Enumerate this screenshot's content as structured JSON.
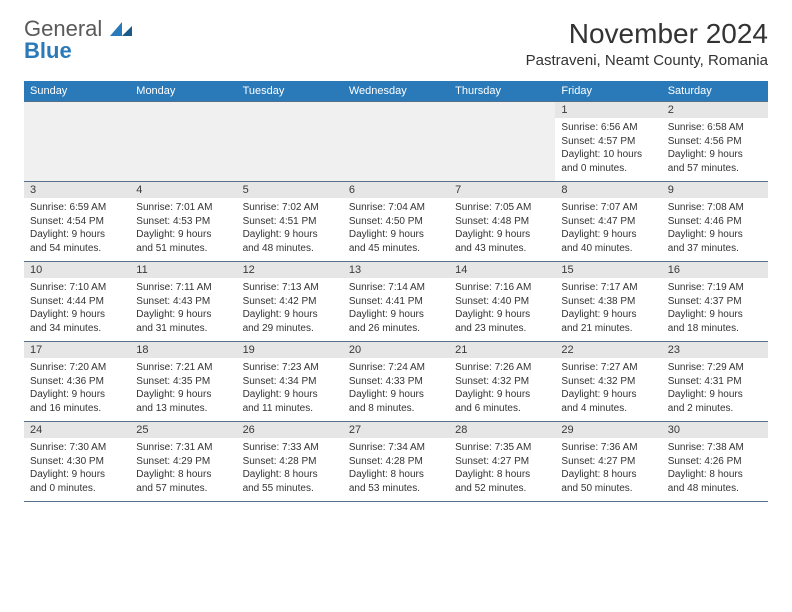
{
  "logo": {
    "word1": "General",
    "word2": "Blue"
  },
  "title": "November 2024",
  "location": "Pastraveni, Neamt County, Romania",
  "day_names": [
    "Sunday",
    "Monday",
    "Tuesday",
    "Wednesday",
    "Thursday",
    "Friday",
    "Saturday"
  ],
  "colors": {
    "header_bg": "#2a7ab9",
    "header_text": "#ffffff",
    "row_border": "#567089",
    "daynum_bg": "#e6e6e6",
    "empty_bg": "#f0f0f0",
    "logo_gray": "#5a5a5a",
    "logo_blue": "#2a7ab9"
  },
  "weeks": [
    [
      null,
      null,
      null,
      null,
      null,
      {
        "day": "1",
        "sunrise": "Sunrise: 6:56 AM",
        "sunset": "Sunset: 4:57 PM",
        "daylight1": "Daylight: 10 hours",
        "daylight2": "and 0 minutes."
      },
      {
        "day": "2",
        "sunrise": "Sunrise: 6:58 AM",
        "sunset": "Sunset: 4:56 PM",
        "daylight1": "Daylight: 9 hours",
        "daylight2": "and 57 minutes."
      }
    ],
    [
      {
        "day": "3",
        "sunrise": "Sunrise: 6:59 AM",
        "sunset": "Sunset: 4:54 PM",
        "daylight1": "Daylight: 9 hours",
        "daylight2": "and 54 minutes."
      },
      {
        "day": "4",
        "sunrise": "Sunrise: 7:01 AM",
        "sunset": "Sunset: 4:53 PM",
        "daylight1": "Daylight: 9 hours",
        "daylight2": "and 51 minutes."
      },
      {
        "day": "5",
        "sunrise": "Sunrise: 7:02 AM",
        "sunset": "Sunset: 4:51 PM",
        "daylight1": "Daylight: 9 hours",
        "daylight2": "and 48 minutes."
      },
      {
        "day": "6",
        "sunrise": "Sunrise: 7:04 AM",
        "sunset": "Sunset: 4:50 PM",
        "daylight1": "Daylight: 9 hours",
        "daylight2": "and 45 minutes."
      },
      {
        "day": "7",
        "sunrise": "Sunrise: 7:05 AM",
        "sunset": "Sunset: 4:48 PM",
        "daylight1": "Daylight: 9 hours",
        "daylight2": "and 43 minutes."
      },
      {
        "day": "8",
        "sunrise": "Sunrise: 7:07 AM",
        "sunset": "Sunset: 4:47 PM",
        "daylight1": "Daylight: 9 hours",
        "daylight2": "and 40 minutes."
      },
      {
        "day": "9",
        "sunrise": "Sunrise: 7:08 AM",
        "sunset": "Sunset: 4:46 PM",
        "daylight1": "Daylight: 9 hours",
        "daylight2": "and 37 minutes."
      }
    ],
    [
      {
        "day": "10",
        "sunrise": "Sunrise: 7:10 AM",
        "sunset": "Sunset: 4:44 PM",
        "daylight1": "Daylight: 9 hours",
        "daylight2": "and 34 minutes."
      },
      {
        "day": "11",
        "sunrise": "Sunrise: 7:11 AM",
        "sunset": "Sunset: 4:43 PM",
        "daylight1": "Daylight: 9 hours",
        "daylight2": "and 31 minutes."
      },
      {
        "day": "12",
        "sunrise": "Sunrise: 7:13 AM",
        "sunset": "Sunset: 4:42 PM",
        "daylight1": "Daylight: 9 hours",
        "daylight2": "and 29 minutes."
      },
      {
        "day": "13",
        "sunrise": "Sunrise: 7:14 AM",
        "sunset": "Sunset: 4:41 PM",
        "daylight1": "Daylight: 9 hours",
        "daylight2": "and 26 minutes."
      },
      {
        "day": "14",
        "sunrise": "Sunrise: 7:16 AM",
        "sunset": "Sunset: 4:40 PM",
        "daylight1": "Daylight: 9 hours",
        "daylight2": "and 23 minutes."
      },
      {
        "day": "15",
        "sunrise": "Sunrise: 7:17 AM",
        "sunset": "Sunset: 4:38 PM",
        "daylight1": "Daylight: 9 hours",
        "daylight2": "and 21 minutes."
      },
      {
        "day": "16",
        "sunrise": "Sunrise: 7:19 AM",
        "sunset": "Sunset: 4:37 PM",
        "daylight1": "Daylight: 9 hours",
        "daylight2": "and 18 minutes."
      }
    ],
    [
      {
        "day": "17",
        "sunrise": "Sunrise: 7:20 AM",
        "sunset": "Sunset: 4:36 PM",
        "daylight1": "Daylight: 9 hours",
        "daylight2": "and 16 minutes."
      },
      {
        "day": "18",
        "sunrise": "Sunrise: 7:21 AM",
        "sunset": "Sunset: 4:35 PM",
        "daylight1": "Daylight: 9 hours",
        "daylight2": "and 13 minutes."
      },
      {
        "day": "19",
        "sunrise": "Sunrise: 7:23 AM",
        "sunset": "Sunset: 4:34 PM",
        "daylight1": "Daylight: 9 hours",
        "daylight2": "and 11 minutes."
      },
      {
        "day": "20",
        "sunrise": "Sunrise: 7:24 AM",
        "sunset": "Sunset: 4:33 PM",
        "daylight1": "Daylight: 9 hours",
        "daylight2": "and 8 minutes."
      },
      {
        "day": "21",
        "sunrise": "Sunrise: 7:26 AM",
        "sunset": "Sunset: 4:32 PM",
        "daylight1": "Daylight: 9 hours",
        "daylight2": "and 6 minutes."
      },
      {
        "day": "22",
        "sunrise": "Sunrise: 7:27 AM",
        "sunset": "Sunset: 4:32 PM",
        "daylight1": "Daylight: 9 hours",
        "daylight2": "and 4 minutes."
      },
      {
        "day": "23",
        "sunrise": "Sunrise: 7:29 AM",
        "sunset": "Sunset: 4:31 PM",
        "daylight1": "Daylight: 9 hours",
        "daylight2": "and 2 minutes."
      }
    ],
    [
      {
        "day": "24",
        "sunrise": "Sunrise: 7:30 AM",
        "sunset": "Sunset: 4:30 PM",
        "daylight1": "Daylight: 9 hours",
        "daylight2": "and 0 minutes."
      },
      {
        "day": "25",
        "sunrise": "Sunrise: 7:31 AM",
        "sunset": "Sunset: 4:29 PM",
        "daylight1": "Daylight: 8 hours",
        "daylight2": "and 57 minutes."
      },
      {
        "day": "26",
        "sunrise": "Sunrise: 7:33 AM",
        "sunset": "Sunset: 4:28 PM",
        "daylight1": "Daylight: 8 hours",
        "daylight2": "and 55 minutes."
      },
      {
        "day": "27",
        "sunrise": "Sunrise: 7:34 AM",
        "sunset": "Sunset: 4:28 PM",
        "daylight1": "Daylight: 8 hours",
        "daylight2": "and 53 minutes."
      },
      {
        "day": "28",
        "sunrise": "Sunrise: 7:35 AM",
        "sunset": "Sunset: 4:27 PM",
        "daylight1": "Daylight: 8 hours",
        "daylight2": "and 52 minutes."
      },
      {
        "day": "29",
        "sunrise": "Sunrise: 7:36 AM",
        "sunset": "Sunset: 4:27 PM",
        "daylight1": "Daylight: 8 hours",
        "daylight2": "and 50 minutes."
      },
      {
        "day": "30",
        "sunrise": "Sunrise: 7:38 AM",
        "sunset": "Sunset: 4:26 PM",
        "daylight1": "Daylight: 8 hours",
        "daylight2": "and 48 minutes."
      }
    ]
  ]
}
